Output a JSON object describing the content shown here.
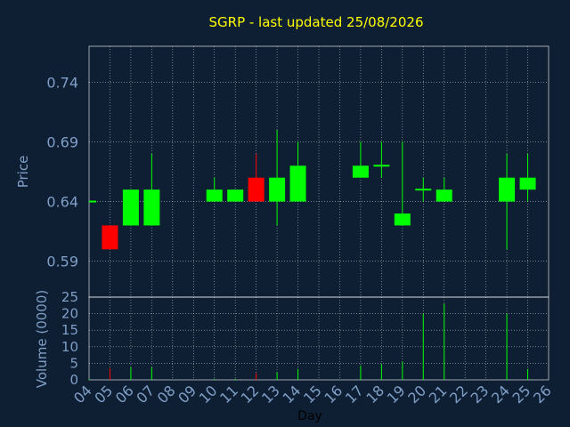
{
  "chart_data": {
    "type": "candlestick",
    "title": "SGRP - last updated 25/08/2026",
    "xlabel": "Day",
    "colors": {
      "background": "#0f1f33",
      "up": "#00ff00",
      "down": "#ff0000",
      "grid": "#ffffff",
      "text": "#7f9fc7",
      "title": "#ffff00"
    },
    "days": [
      "04",
      "05",
      "06",
      "07",
      "08",
      "09",
      "10",
      "11",
      "12",
      "13",
      "14",
      "15",
      "16",
      "17",
      "18",
      "19",
      "20",
      "21",
      "22",
      "23",
      "24",
      "25",
      "26"
    ],
    "price_panel": {
      "ylabel": "Price",
      "yticks": [
        "0.59",
        "0.64",
        "0.69",
        "0.74"
      ],
      "ylim": [
        0.56,
        0.77
      ],
      "grid": true
    },
    "volume_panel": {
      "ylabel": "Volume (0000)",
      "yticks": [
        "0",
        "5",
        "10",
        "15",
        "20",
        "25"
      ],
      "ylim": [
        0,
        25
      ],
      "grid": true
    },
    "candles": [
      {
        "day": "04",
        "open": 0.64,
        "close": 0.64,
        "high": 0.64,
        "low": 0.64,
        "volume": 0.3
      },
      {
        "day": "05",
        "open": 0.62,
        "close": 0.6,
        "high": 0.62,
        "low": 0.6,
        "volume": 3.5
      },
      {
        "day": "06",
        "open": 0.62,
        "close": 0.65,
        "high": 0.65,
        "low": 0.62,
        "volume": 3.8
      },
      {
        "day": "07",
        "open": 0.62,
        "close": 0.65,
        "high": 0.68,
        "low": 0.62,
        "volume": 3.8
      },
      {
        "day": "10",
        "open": 0.64,
        "close": 0.65,
        "high": 0.66,
        "low": 0.64,
        "volume": 0.3
      },
      {
        "day": "11",
        "open": 0.64,
        "close": 0.65,
        "high": 0.65,
        "low": 0.64,
        "volume": 0.3
      },
      {
        "day": "12",
        "open": 0.66,
        "close": 0.64,
        "high": 0.68,
        "low": 0.64,
        "volume": 2.0
      },
      {
        "day": "13",
        "open": 0.64,
        "close": 0.66,
        "high": 0.7,
        "low": 0.62,
        "volume": 2.3
      },
      {
        "day": "14",
        "open": 0.64,
        "close": 0.67,
        "high": 0.69,
        "low": 0.64,
        "volume": 3.3
      },
      {
        "day": "17",
        "open": 0.66,
        "close": 0.67,
        "high": 0.69,
        "low": 0.66,
        "volume": 4.3
      },
      {
        "day": "18",
        "open": 0.67,
        "close": 0.67,
        "high": 0.69,
        "low": 0.66,
        "volume": 4.8
      },
      {
        "day": "19",
        "open": 0.62,
        "close": 0.63,
        "high": 0.69,
        "low": 0.62,
        "volume": 5.5
      },
      {
        "day": "20",
        "open": 0.65,
        "close": 0.65,
        "high": 0.66,
        "low": 0.64,
        "volume": 20.0
      },
      {
        "day": "21",
        "open": 0.64,
        "close": 0.65,
        "high": 0.66,
        "low": 0.64,
        "volume": 23.0
      },
      {
        "day": "24",
        "open": 0.64,
        "close": 0.66,
        "high": 0.68,
        "low": 0.6,
        "volume": 20.0
      },
      {
        "day": "25",
        "open": 0.65,
        "close": 0.66,
        "high": 0.68,
        "low": 0.64,
        "volume": 3.3
      }
    ]
  }
}
